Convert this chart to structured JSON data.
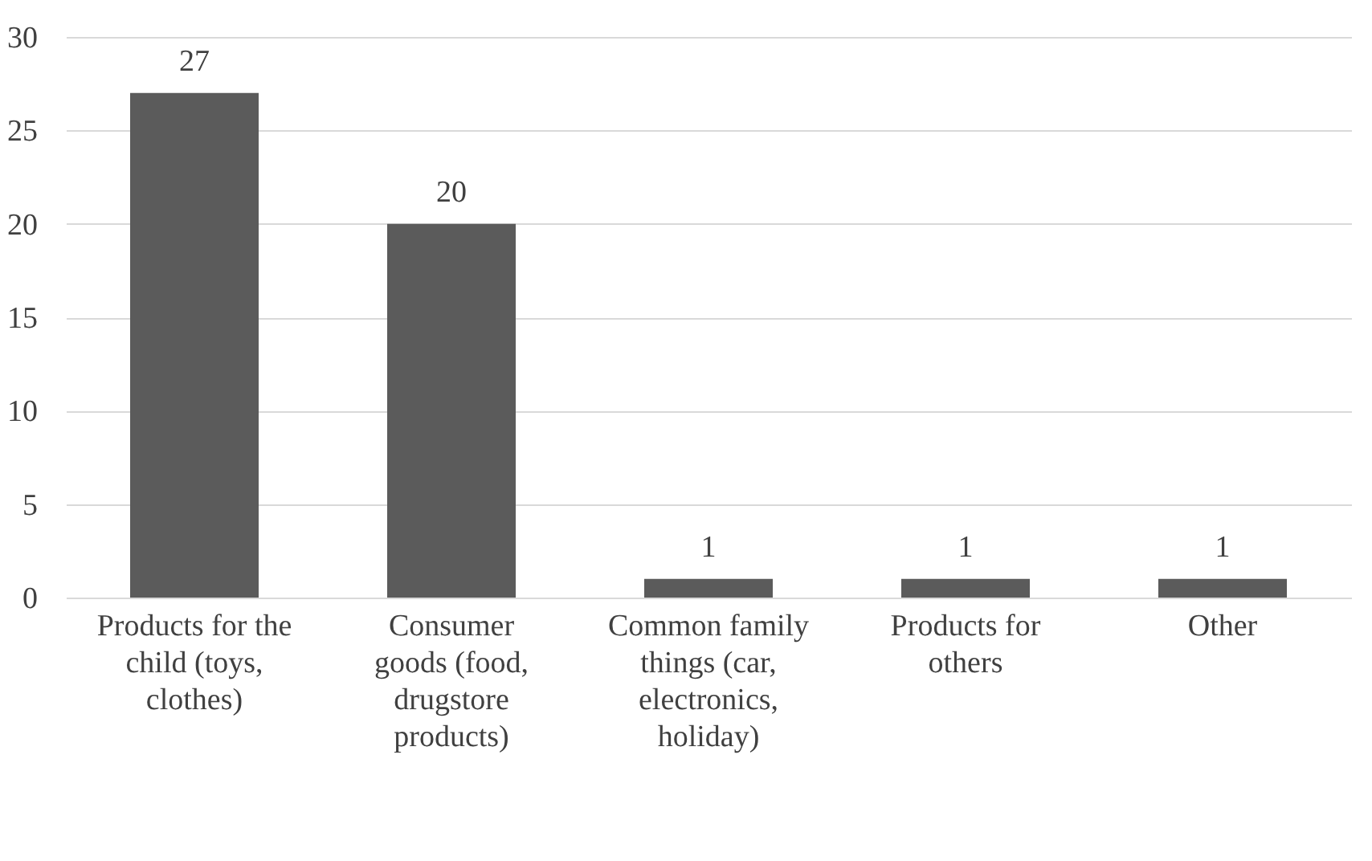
{
  "chart_data": {
    "type": "bar",
    "categories": [
      "Products for the child (toys, clothes)",
      "Consumer goods (food, drugstore products)",
      "Common family things (car, electronics, holiday)",
      "Products for others",
      "Other"
    ],
    "values": [
      27,
      20,
      1,
      1,
      1
    ],
    "color": "#5b5b5b",
    "ylim": [
      0,
      30
    ],
    "yticks": [
      0,
      5,
      10,
      15,
      20,
      25,
      30
    ],
    "grid": "y",
    "data_labels": true
  }
}
